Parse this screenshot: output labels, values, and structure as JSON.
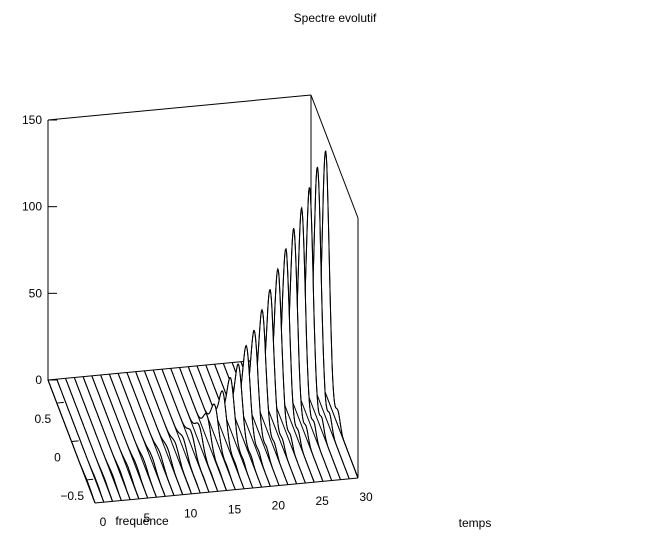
{
  "chart_data": {
    "type": "waterfall",
    "title": "Spectre evolutif",
    "xlabel": "temps",
    "ylabel": "frequence",
    "zlabel": "",
    "xlim": [
      0,
      30
    ],
    "ylim": [
      -0.8,
      0.8
    ],
    "zlim": [
      0,
      150
    ],
    "xticks": [
      0,
      5,
      10,
      15,
      20,
      25,
      30
    ],
    "xtick_labels": [
      "0",
      "5",
      "10",
      "15",
      "20",
      "25",
      "30"
    ],
    "yticks": [
      0.5,
      0,
      -0.5
    ],
    "ytick_labels": [
      "0.5",
      "0",
      "−0.5"
    ],
    "zticks": [
      0,
      50,
      100,
      150
    ],
    "ztick_labels": [
      "0",
      "50",
      "100",
      "150"
    ],
    "grid": false,
    "n_traces": 31,
    "temps": [
      0,
      1,
      2,
      3,
      4,
      5,
      6,
      7,
      8,
      9,
      10,
      11,
      12,
      13,
      14,
      15,
      16,
      17,
      18,
      19,
      20,
      21,
      22,
      23,
      24,
      25,
      26,
      27,
      28,
      29,
      30
    ],
    "frequence": [
      -0.8,
      -0.7,
      -0.6,
      -0.5,
      -0.4,
      -0.3,
      -0.2,
      -0.1,
      0,
      0.1,
      0.2,
      0.3,
      0.4,
      0.5,
      0.6,
      0.7,
      0.8
    ],
    "peak_frequency": [
      -0.55,
      -0.54,
      -0.52,
      -0.5,
      -0.47,
      -0.44,
      -0.41,
      -0.38,
      -0.35,
      -0.32,
      -0.29,
      -0.26,
      -0.23,
      -0.2,
      -0.17,
      -0.14,
      -0.11,
      -0.08,
      -0.05,
      -0.02,
      0.01,
      0.04,
      0.07,
      0.1,
      0.13,
      0.16,
      0.19,
      0.22,
      0.25,
      0.28,
      0.3
    ],
    "peak_amplitude": [
      1,
      1,
      1,
      1.5,
      1.5,
      2,
      2,
      2.5,
      3,
      3.5,
      4,
      5,
      6,
      8,
      10,
      14,
      18,
      24,
      30,
      36,
      45,
      52,
      62,
      72,
      82,
      92,
      102,
      112,
      122,
      132,
      140
    ]
  }
}
